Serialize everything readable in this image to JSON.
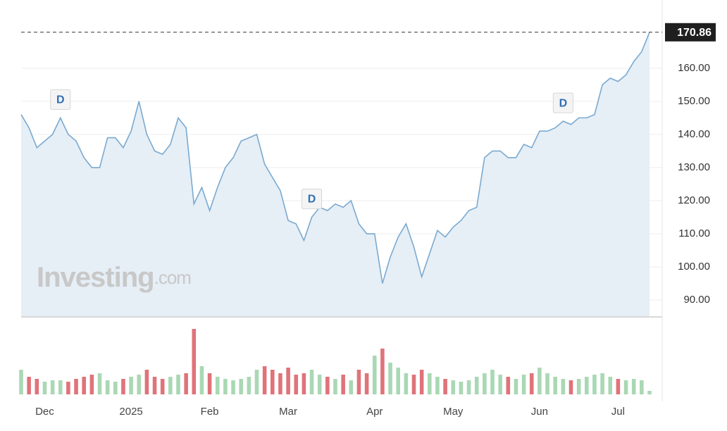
{
  "chart_data": {
    "type": "line",
    "categories": [
      null,
      null,
      null,
      "Dec",
      null,
      null,
      null,
      null,
      null,
      null,
      null,
      null,
      null,
      null,
      "2025",
      null,
      null,
      null,
      null,
      null,
      null,
      null,
      null,
      null,
      "Feb",
      null,
      null,
      null,
      null,
      null,
      null,
      null,
      null,
      null,
      "Mar",
      null,
      null,
      null,
      null,
      null,
      null,
      null,
      null,
      null,
      null,
      "Apr",
      null,
      null,
      null,
      null,
      null,
      null,
      null,
      null,
      null,
      "May",
      null,
      null,
      null,
      null,
      null,
      null,
      null,
      null,
      null,
      null,
      "Jun",
      null,
      null,
      null,
      null,
      null,
      null,
      null,
      null,
      null,
      "Jul",
      null,
      null,
      null,
      null
    ],
    "values": [
      146,
      142,
      136,
      138,
      140,
      145,
      140,
      138,
      133,
      130,
      130,
      139,
      139,
      136,
      141,
      150,
      140,
      135,
      134,
      137,
      145,
      142,
      119,
      124,
      117,
      124,
      130,
      133,
      138,
      139,
      140,
      131,
      127,
      123,
      114,
      113,
      108,
      115,
      118,
      117,
      119,
      118,
      120,
      113,
      110,
      110,
      95,
      103,
      109,
      113,
      106,
      97,
      104,
      111,
      109,
      112,
      114,
      117,
      118,
      133,
      135,
      135,
      133,
      133,
      137,
      136,
      141,
      141,
      142,
      144,
      143,
      145,
      145,
      146,
      155,
      157,
      156,
      158,
      162,
      165,
      170.86
    ],
    "volume": [
      35,
      25,
      22,
      18,
      20,
      20,
      18,
      22,
      25,
      28,
      30,
      20,
      18,
      22,
      25,
      28,
      35,
      25,
      22,
      25,
      28,
      30,
      93,
      40,
      30,
      25,
      22,
      20,
      22,
      25,
      35,
      40,
      35,
      30,
      38,
      28,
      30,
      35,
      28,
      25,
      22,
      28,
      20,
      35,
      30,
      55,
      65,
      45,
      38,
      30,
      28,
      35,
      30,
      25,
      22,
      20,
      18,
      20,
      25,
      30,
      35,
      28,
      25,
      22,
      28,
      30,
      38,
      30,
      25,
      22,
      20,
      22,
      25,
      28,
      30,
      25,
      22,
      20,
      22,
      20,
      5
    ],
    "color": "#7aaad0",
    "fill": "#e6eef6",
    "up_color": "#a9d8b4",
    "down_color": "#e0737a",
    "ylim": [
      85.1,
      180.6
    ],
    "volume_lim": [
      0,
      100
    ],
    "yticks": [
      {
        "value": 90,
        "label": "90.00"
      },
      {
        "value": 100,
        "label": "100.00"
      },
      {
        "value": 110,
        "label": "110.00"
      },
      {
        "value": 120,
        "label": "120.00"
      },
      {
        "value": 130,
        "label": "130.00"
      },
      {
        "value": 140,
        "label": "140.00"
      },
      {
        "value": 150,
        "label": "150.00"
      },
      {
        "value": 160,
        "label": "160.00"
      }
    ],
    "grid": true,
    "markers": [
      {
        "label": "D",
        "at": 5
      },
      {
        "label": "D",
        "at": 37
      },
      {
        "label": "D",
        "at": 69
      }
    ],
    "watermark_brand": "Investing",
    "watermark_suffix": ".com"
  }
}
